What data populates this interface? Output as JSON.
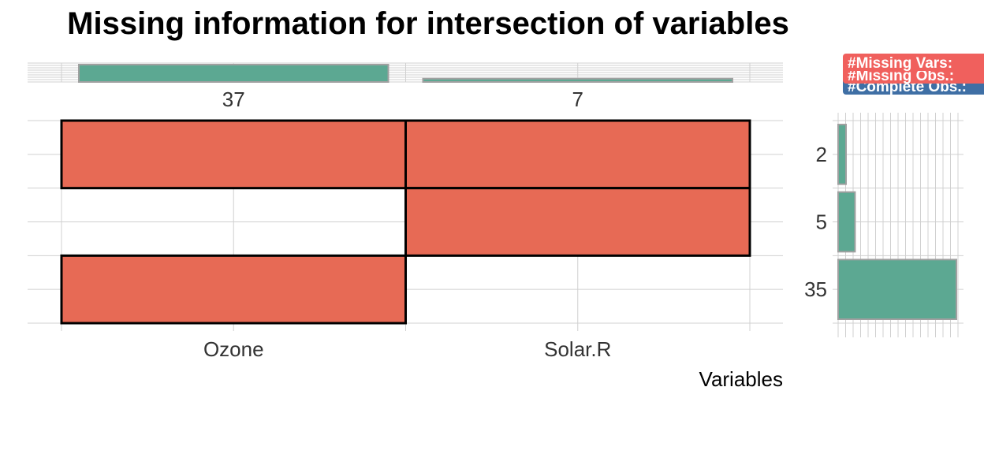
{
  "chart_data": {
    "type": "upset",
    "title": "Missing information for intersection of variables",
    "xlabel": "Variables",
    "variables": [
      "Ozone",
      "Solar.R"
    ],
    "variable_missing_counts": [
      37,
      7
    ],
    "intersections": [
      {
        "present": [
          true,
          true
        ],
        "count": 2
      },
      {
        "present": [
          false,
          true
        ],
        "count": 5
      },
      {
        "present": [
          true,
          false
        ],
        "count": 35
      }
    ],
    "legend": [
      "#Missing Vars:",
      "#Missing Obs.:",
      "#Complete Obs.:"
    ],
    "colors": {
      "matrix_fill": "#e76a55",
      "bar_fill": "#5ca892",
      "bar_stroke": "#a0a0a0",
      "legend_missing_vars": "#f0605d",
      "legend_missing_obs": "#f0605d",
      "legend_complete_obs": "#3f6fa5"
    }
  }
}
